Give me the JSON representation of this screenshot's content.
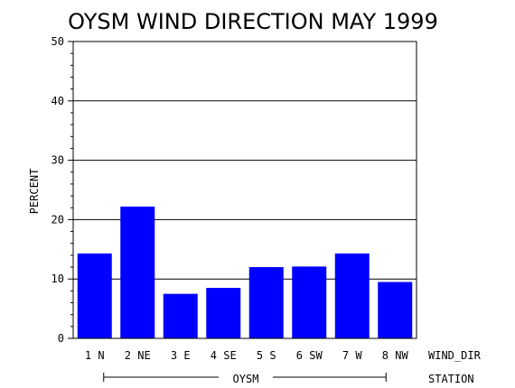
{
  "chart_data": {
    "type": "bar",
    "title": "OYSM WIND DIRECTION MAY 1999",
    "ylabel": "PERCENT",
    "xlabel": "WIND_DIR",
    "group_label": "OYSM",
    "group_axis_label": "STATION",
    "ylim": [
      0,
      50
    ],
    "yticks": [
      "0",
      "10",
      "20",
      "30",
      "40",
      "50"
    ],
    "grid": true,
    "bar_color": "#0000ff",
    "categories": [
      "1 N",
      "2 NE",
      "3 E",
      "4 SE",
      "5 S",
      "6 SW",
      "7 W",
      "8 NW"
    ],
    "values": [
      14.3,
      22.2,
      7.5,
      8.5,
      12.0,
      12.1,
      14.3,
      9.5
    ]
  }
}
